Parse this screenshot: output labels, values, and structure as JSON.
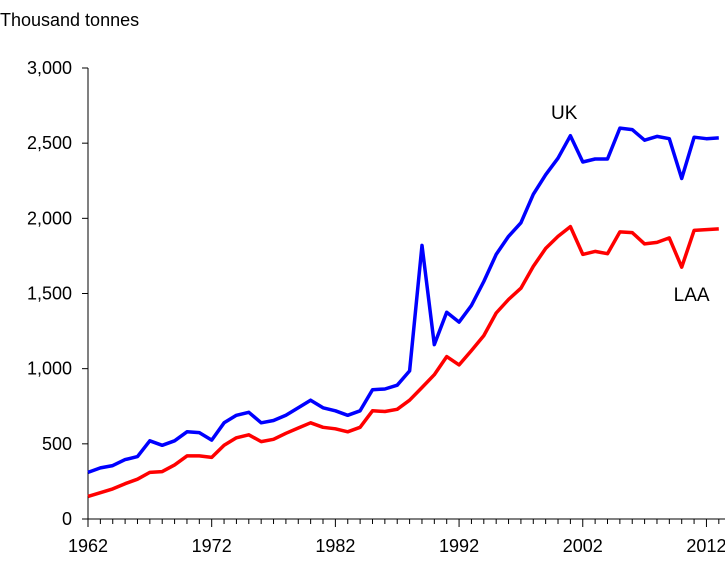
{
  "chart_data": {
    "type": "line",
    "title": "",
    "ylabel": "Thousand tonnes",
    "xlabel": "",
    "xlim": [
      1962,
      2013.5
    ],
    "ylim": [
      0,
      3000
    ],
    "x_ticks": [
      1962,
      1972,
      1982,
      1992,
      2002,
      2012
    ],
    "y_ticks": [
      0,
      500,
      1000,
      1500,
      2000,
      2500,
      3000
    ],
    "y_tick_labels": [
      "0",
      "500",
      "1,000",
      "1,500",
      "2,000",
      "2,500",
      "3,000"
    ],
    "grid": false,
    "legend": "none (series labelled directly on chart)",
    "x": [
      1962,
      1963,
      1964,
      1965,
      1966,
      1967,
      1968,
      1969,
      1970,
      1971,
      1972,
      1973,
      1974,
      1975,
      1976,
      1977,
      1978,
      1979,
      1980,
      1981,
      1982,
      1983,
      1984,
      1985,
      1986,
      1987,
      1988,
      1989,
      1990,
      1991,
      1992,
      1993,
      1994,
      1995,
      1996,
      1997,
      1998,
      1999,
      2000,
      2001,
      2002,
      2003,
      2004,
      2005,
      2006,
      2007,
      2008,
      2009,
      2010,
      2011,
      2012,
      2013
    ],
    "series": [
      {
        "name": "UK",
        "color": "#0000ff",
        "values": [
          310,
          340,
          355,
          395,
          415,
          520,
          490,
          520,
          580,
          575,
          525,
          640,
          690,
          710,
          640,
          655,
          690,
          740,
          790,
          740,
          720,
          690,
          720,
          860,
          865,
          890,
          985,
          1820,
          1160,
          1375,
          1310,
          1420,
          1580,
          1760,
          1880,
          1970,
          2160,
          2290,
          2400,
          2550,
          2375,
          2395,
          2395,
          2600,
          2590,
          2520,
          2545,
          2530,
          2265,
          2540,
          2530,
          2535
        ]
      },
      {
        "name": "LAA",
        "color": "#ff0000",
        "values": [
          150,
          175,
          200,
          235,
          265,
          310,
          315,
          360,
          420,
          420,
          410,
          490,
          540,
          560,
          515,
          530,
          570,
          605,
          640,
          610,
          600,
          580,
          610,
          720,
          715,
          730,
          790,
          875,
          960,
          1080,
          1025,
          1120,
          1220,
          1370,
          1460,
          1535,
          1680,
          1800,
          1880,
          1945,
          1760,
          1780,
          1765,
          1910,
          1905,
          1830,
          1840,
          1870,
          1675,
          1920,
          1925,
          1930
        ]
      }
    ]
  }
}
